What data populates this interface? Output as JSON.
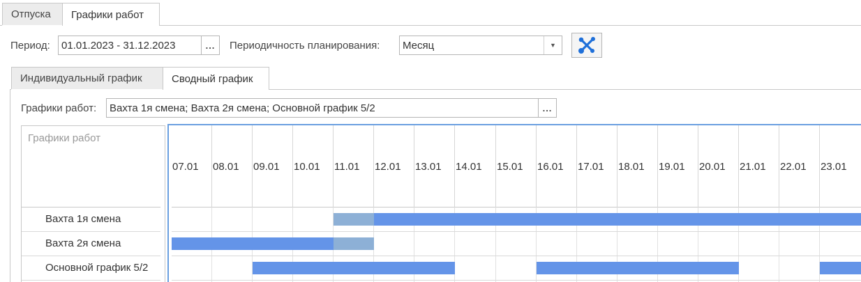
{
  "top_tabs": [
    {
      "label": "Отпуска",
      "active": false
    },
    {
      "label": "Графики работ",
      "active": true
    }
  ],
  "period": {
    "label": "Период:",
    "value": "01.01.2023 - 31.12.2023",
    "button": "..."
  },
  "planning": {
    "label": "Периодичность планирования:",
    "value": "Месяц"
  },
  "tool_button": {
    "icon": "wrench-screwdriver-icon"
  },
  "inner_tabs": [
    {
      "label": "Индивидуальный график",
      "active": false
    },
    {
      "label": "Сводный график",
      "active": true
    }
  ],
  "schedules": {
    "label": "Графики работ:",
    "value": "Вахта 1я смена; Вахта 2я смена; Основной график 5/2",
    "button": "..."
  },
  "gantt": {
    "header_label": "Графики работ",
    "dates": [
      "07.01",
      "08.01",
      "09.01",
      "10.01",
      "11.01",
      "12.01",
      "13.01",
      "14.01",
      "15.01",
      "16.01",
      "17.01",
      "18.01",
      "19.01",
      "20.01",
      "21.01",
      "22.01",
      "23.01"
    ],
    "rows": [
      {
        "name": "Вахта 1я смена",
        "segments": [
          {
            "start": 4,
            "end": 5,
            "kind": "light"
          },
          {
            "start": 5,
            "end": 17,
            "kind": "main"
          }
        ]
      },
      {
        "name": "Вахта 2я смена",
        "segments": [
          {
            "start": 0,
            "end": 4,
            "kind": "main"
          },
          {
            "start": 4,
            "end": 5,
            "kind": "light"
          }
        ]
      },
      {
        "name": "Основной график 5/2",
        "segments": [
          {
            "start": 2,
            "end": 7,
            "kind": "main"
          },
          {
            "start": 9,
            "end": 14,
            "kind": "main"
          },
          {
            "start": 16,
            "end": 17,
            "kind": "main"
          }
        ]
      }
    ]
  },
  "colors": {
    "bar_main": "#6494e8",
    "bar_light": "#8db0d6",
    "accent": "#1e6fd9"
  }
}
